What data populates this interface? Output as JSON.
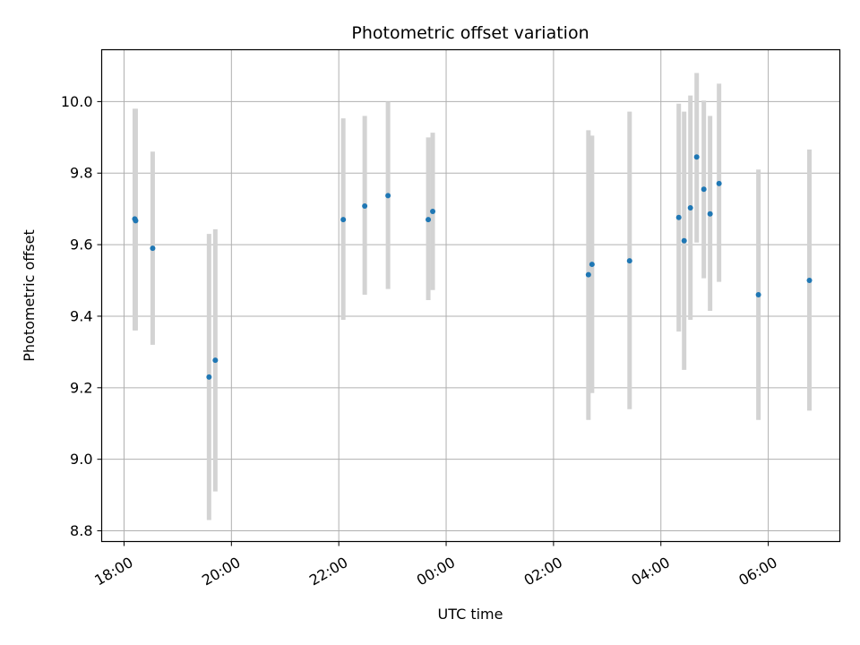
{
  "chart_data": {
    "type": "scatter",
    "title": "Photometric offset variation",
    "xlabel": "UTC time",
    "ylabel": "Photometric offset",
    "x_tick_labels": [
      "18:00",
      "20:00",
      "22:00",
      "00:00",
      "02:00",
      "04:00",
      "06:00"
    ],
    "y_tick_labels": [
      "8.8",
      "9.0",
      "9.2",
      "9.4",
      "9.6",
      "9.8",
      "10.0"
    ],
    "xlim": [
      "17:35",
      "07:20"
    ],
    "ylim": [
      8.77,
      10.145
    ],
    "grid": true,
    "legend": "none",
    "colors": {
      "point": "#1f77b4",
      "errorbar": "#d3d3d3",
      "grid": "#b0b0b0"
    },
    "points": [
      {
        "x": "18:12",
        "y": 9.672,
        "err_low": 9.36,
        "err_high": 9.98
      },
      {
        "x": "18:13",
        "y": 9.667,
        "err_low": 9.36,
        "err_high": 9.98
      },
      {
        "x": "18:32",
        "y": 9.59,
        "err_low": 9.32,
        "err_high": 9.86
      },
      {
        "x": "19:35",
        "y": 9.23,
        "err_low": 8.83,
        "err_high": 9.63
      },
      {
        "x": "19:42",
        "y": 9.277,
        "err_low": 8.91,
        "err_high": 9.643
      },
      {
        "x": "22:05",
        "y": 9.67,
        "err_low": 9.39,
        "err_high": 9.953
      },
      {
        "x": "22:29",
        "y": 9.708,
        "err_low": 9.46,
        "err_high": 9.96
      },
      {
        "x": "22:55",
        "y": 9.737,
        "err_low": 9.476,
        "err_high": 10.0
      },
      {
        "x": "23:40",
        "y": 9.67,
        "err_low": 9.445,
        "err_high": 9.9
      },
      {
        "x": "23:45",
        "y": 9.693,
        "err_low": 9.473,
        "err_high": 9.913
      },
      {
        "x": "02:39",
        "y": 9.516,
        "err_low": 9.11,
        "err_high": 9.92
      },
      {
        "x": "02:43",
        "y": 9.545,
        "err_low": 9.185,
        "err_high": 9.905
      },
      {
        "x": "03:25",
        "y": 9.555,
        "err_low": 9.14,
        "err_high": 9.972
      },
      {
        "x": "04:20",
        "y": 9.676,
        "err_low": 9.357,
        "err_high": 9.994
      },
      {
        "x": "04:26",
        "y": 9.611,
        "err_low": 9.25,
        "err_high": 9.972
      },
      {
        "x": "04:33",
        "y": 9.703,
        "err_low": 9.39,
        "err_high": 10.017
      },
      {
        "x": "04:40",
        "y": 9.845,
        "err_low": 9.606,
        "err_high": 10.08
      },
      {
        "x": "04:48",
        "y": 9.755,
        "err_low": 9.506,
        "err_high": 10.003
      },
      {
        "x": "04:55",
        "y": 9.686,
        "err_low": 9.415,
        "err_high": 9.96
      },
      {
        "x": "05:05",
        "y": 9.771,
        "err_low": 9.496,
        "err_high": 10.05
      },
      {
        "x": "05:49",
        "y": 9.46,
        "err_low": 9.11,
        "err_high": 9.81
      },
      {
        "x": "06:46",
        "y": 9.5,
        "err_low": 9.136,
        "err_high": 9.866
      }
    ]
  }
}
